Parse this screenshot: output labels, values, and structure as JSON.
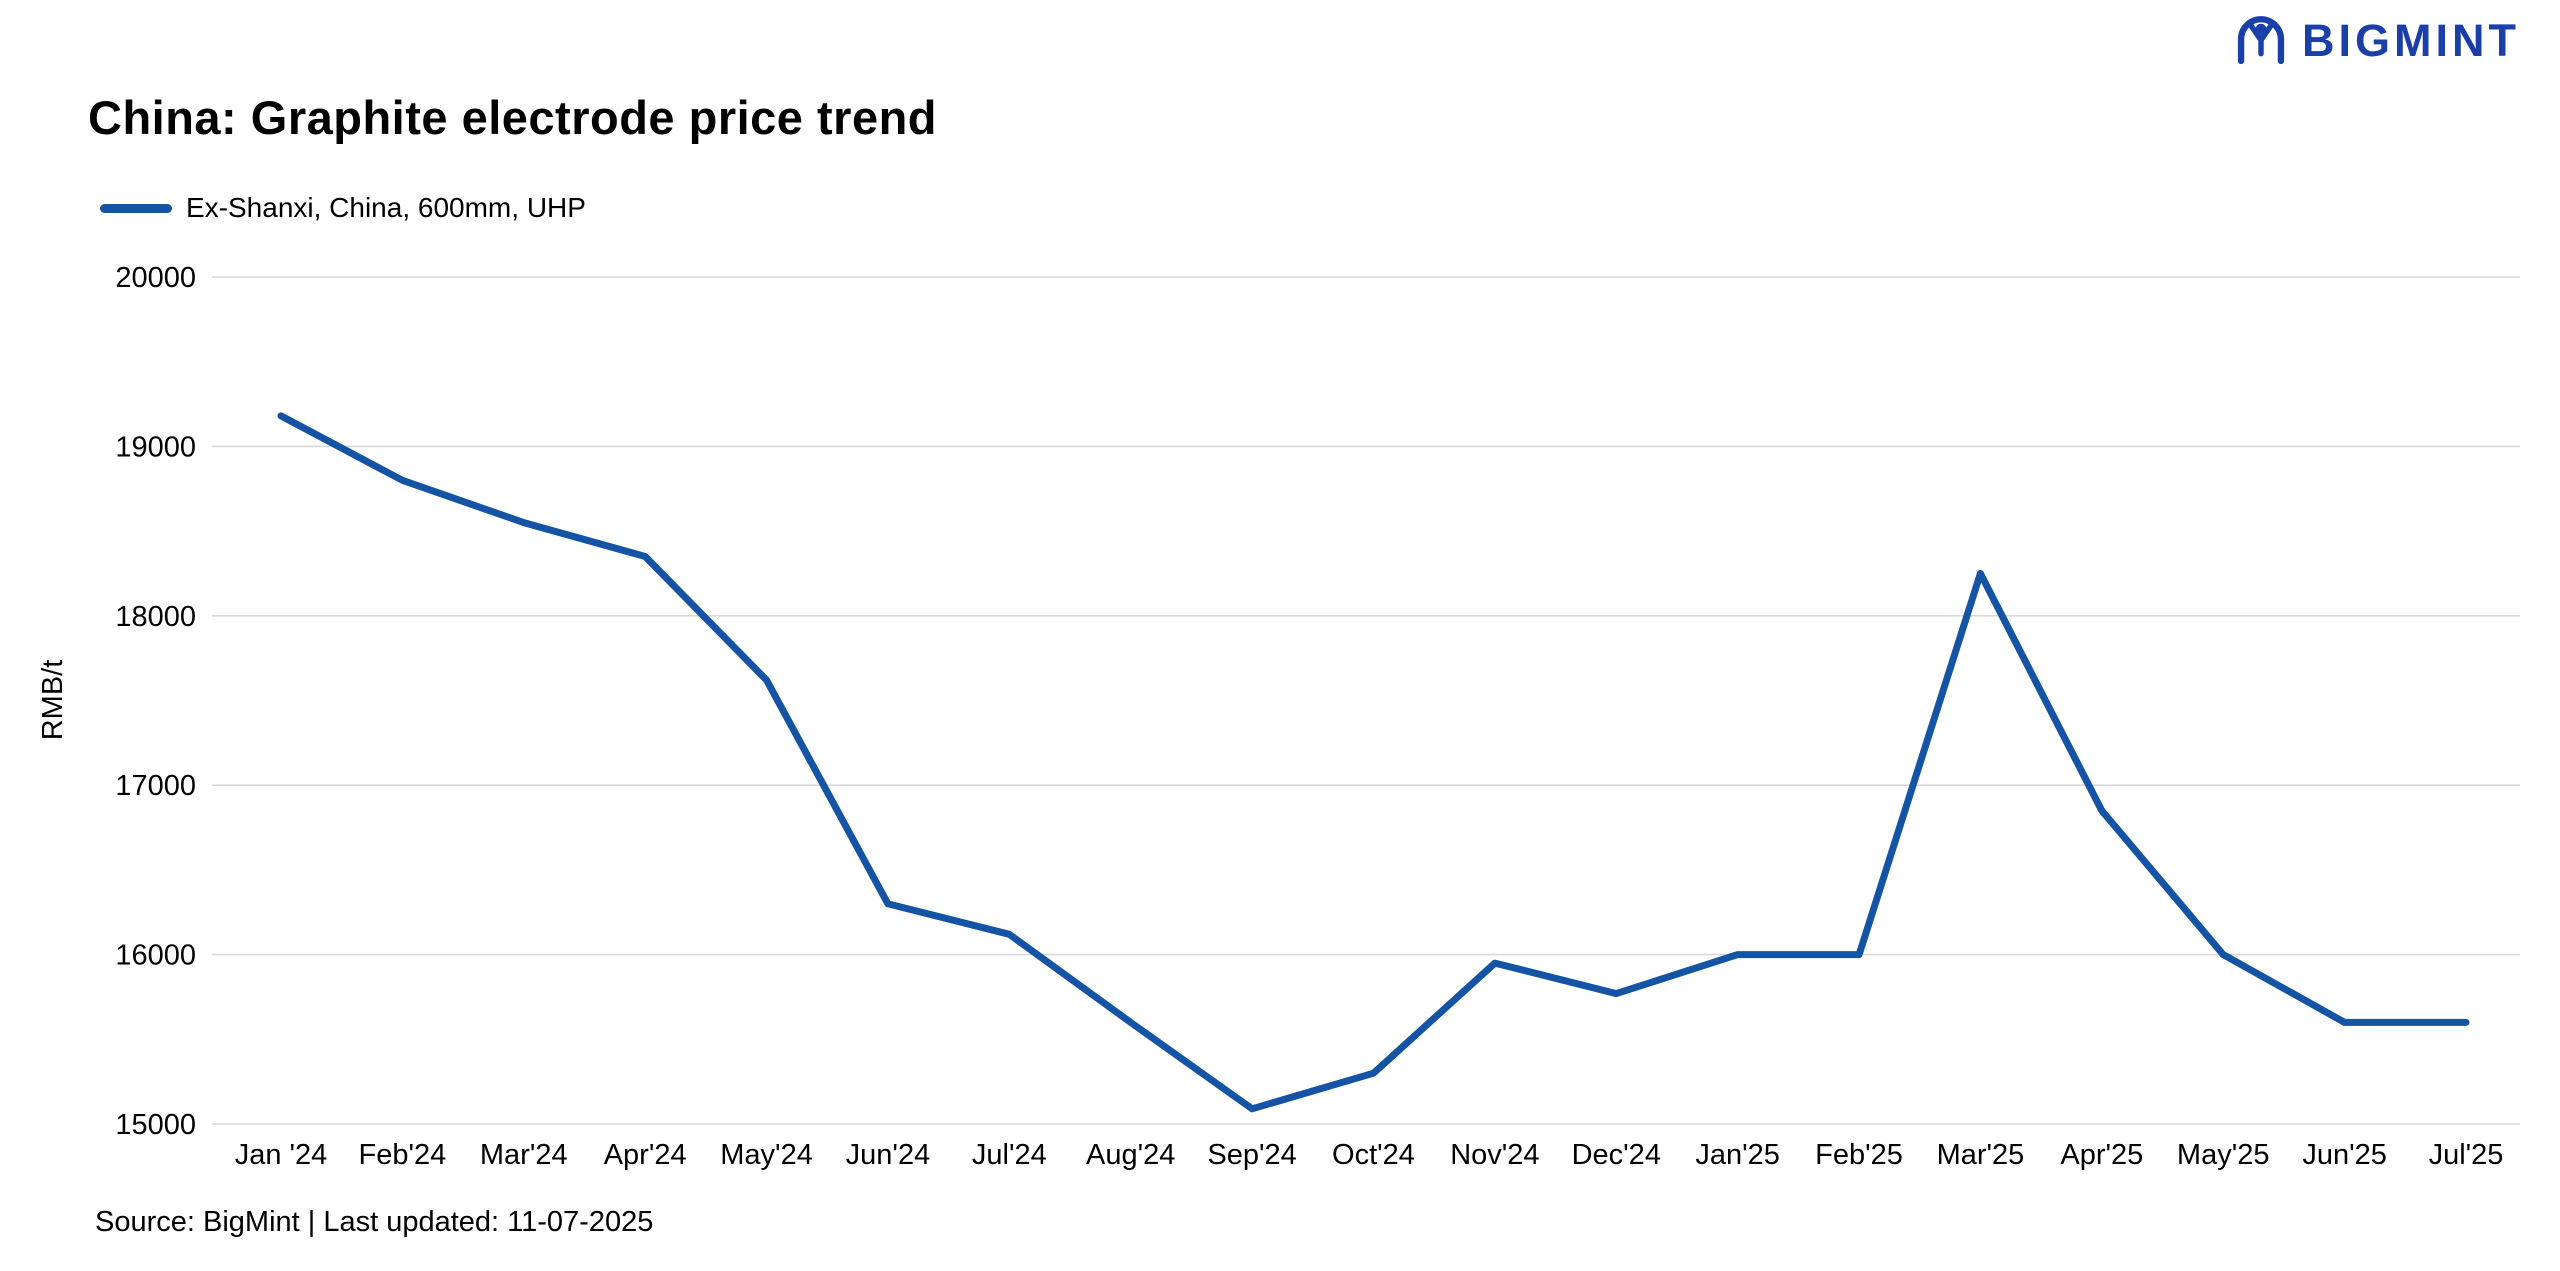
{
  "header": {
    "title": "China: Graphite electrode price trend"
  },
  "legend": {
    "label": "Ex-Shanxi, China, 600mm, UHP"
  },
  "logo": {
    "text": "BIGMINT"
  },
  "footer": {
    "source": "Source: BigMint | Last updated: 11-07-2025"
  },
  "colors": {
    "line": "#1553a5",
    "grid": "#d9d9d9",
    "text": "#000000",
    "logo": "#1b3fa8"
  },
  "chart_data": {
    "type": "line",
    "title": "China: Graphite electrode price trend",
    "xlabel": "",
    "ylabel": "RMB/t",
    "ylim": [
      15000,
      20000
    ],
    "ytick_step": 1000,
    "grid": "horizontal",
    "legend_position": "top-left",
    "categories": [
      "Jan '24",
      "Feb'24",
      "Mar'24",
      "Apr'24",
      "May'24",
      "Jun'24",
      "Jul'24",
      "Aug'24",
      "Sep'24",
      "Oct'24",
      "Nov'24",
      "Dec'24",
      "Jan'25",
      "Feb'25",
      "Mar'25",
      "Apr'25",
      "May'25",
      "Jun'25",
      "Jul'25"
    ],
    "series": [
      {
        "name": "Ex-Shanxi, China, 600mm, UHP",
        "values": [
          19180,
          18800,
          18550,
          18350,
          17620,
          16300,
          16120,
          15600,
          15090,
          15300,
          15950,
          15770,
          16000,
          16000,
          18250,
          16850,
          16000,
          15600,
          15600
        ]
      }
    ]
  }
}
